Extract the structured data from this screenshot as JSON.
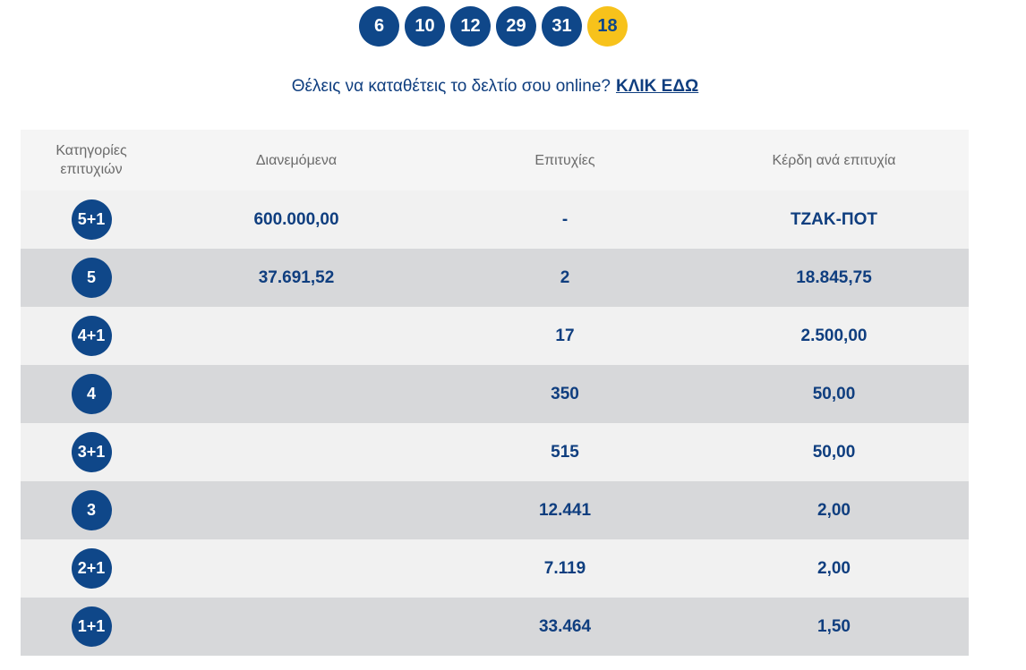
{
  "draw": {
    "numbers": [
      "6",
      "10",
      "12",
      "29",
      "31"
    ],
    "joker": "18"
  },
  "online": {
    "text": "Θέλεις να καταθέτεις το δελτίο σου online?",
    "link": "ΚΛΙΚ ΕΔΩ"
  },
  "table": {
    "headers": {
      "category": "Κατηγορίες επιτυχιών",
      "distributed": "Διανεμόμενα",
      "winners": "Επιτυχίες",
      "prize": "Κέρδη ανά επιτυχία"
    },
    "rows": [
      {
        "category": "5+1",
        "distributed": "600.000,00",
        "winners": "-",
        "prize": "ΤΖΑΚ-ΠΟΤ"
      },
      {
        "category": "5",
        "distributed": "37.691,52",
        "winners": "2",
        "prize": "18.845,75"
      },
      {
        "category": "4+1",
        "distributed": "",
        "winners": "17",
        "prize": "2.500,00"
      },
      {
        "category": "4",
        "distributed": "",
        "winners": "350",
        "prize": "50,00"
      },
      {
        "category": "3+1",
        "distributed": "",
        "winners": "515",
        "prize": "50,00"
      },
      {
        "category": "3",
        "distributed": "",
        "winners": "12.441",
        "prize": "2,00"
      },
      {
        "category": "2+1",
        "distributed": "",
        "winners": "7.119",
        "prize": "2,00"
      },
      {
        "category": "1+1",
        "distributed": "",
        "winners": "33.464",
        "prize": "1,50"
      }
    ]
  },
  "colors": {
    "brand_blue": "#0f4789",
    "joker_yellow": "#f7c21b",
    "row_light": "#f1f1f1",
    "row_dark": "#d7d8da"
  }
}
